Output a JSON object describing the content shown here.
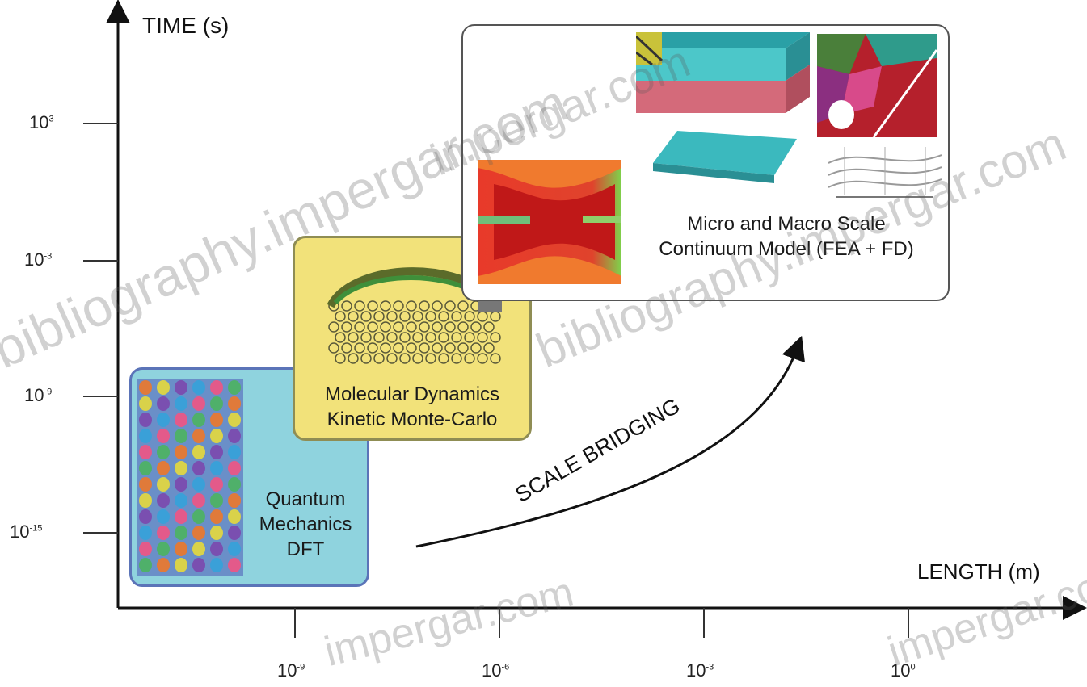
{
  "y_axis": {
    "title": "TIME (s)",
    "ticks": [
      {
        "base": "10",
        "exp": "3"
      },
      {
        "base": "10",
        "exp": "-3"
      },
      {
        "base": "10",
        "exp": "-9"
      },
      {
        "base": "10",
        "exp": "-15"
      }
    ]
  },
  "x_axis": {
    "title": "LENGTH (m)",
    "ticks": [
      {
        "base": "10",
        "exp": "-9"
      },
      {
        "base": "10",
        "exp": "-6"
      },
      {
        "base": "10",
        "exp": "-3"
      },
      {
        "base": "10",
        "exp": "0"
      }
    ]
  },
  "boxes": {
    "quantum": {
      "line1": "Quantum",
      "line2": "Mechanics",
      "line3": "DFT",
      "color": "#8fd3de"
    },
    "molecular": {
      "line1": "Molecular Dynamics",
      "line2": "Kinetic Monte-Carlo",
      "color": "#f2e27a"
    },
    "continuum": {
      "line1": "Micro and Macro Scale",
      "line2": "Continuum Model (FEA + FD)",
      "color": "#ffffff"
    }
  },
  "arrow_label": "SCALE BRIDGING",
  "watermarks": [
    "bibliography.impergar.com",
    "bibliography.impergar.com",
    "impergar.com",
    "impergar.com",
    "impergar.com"
  ]
}
